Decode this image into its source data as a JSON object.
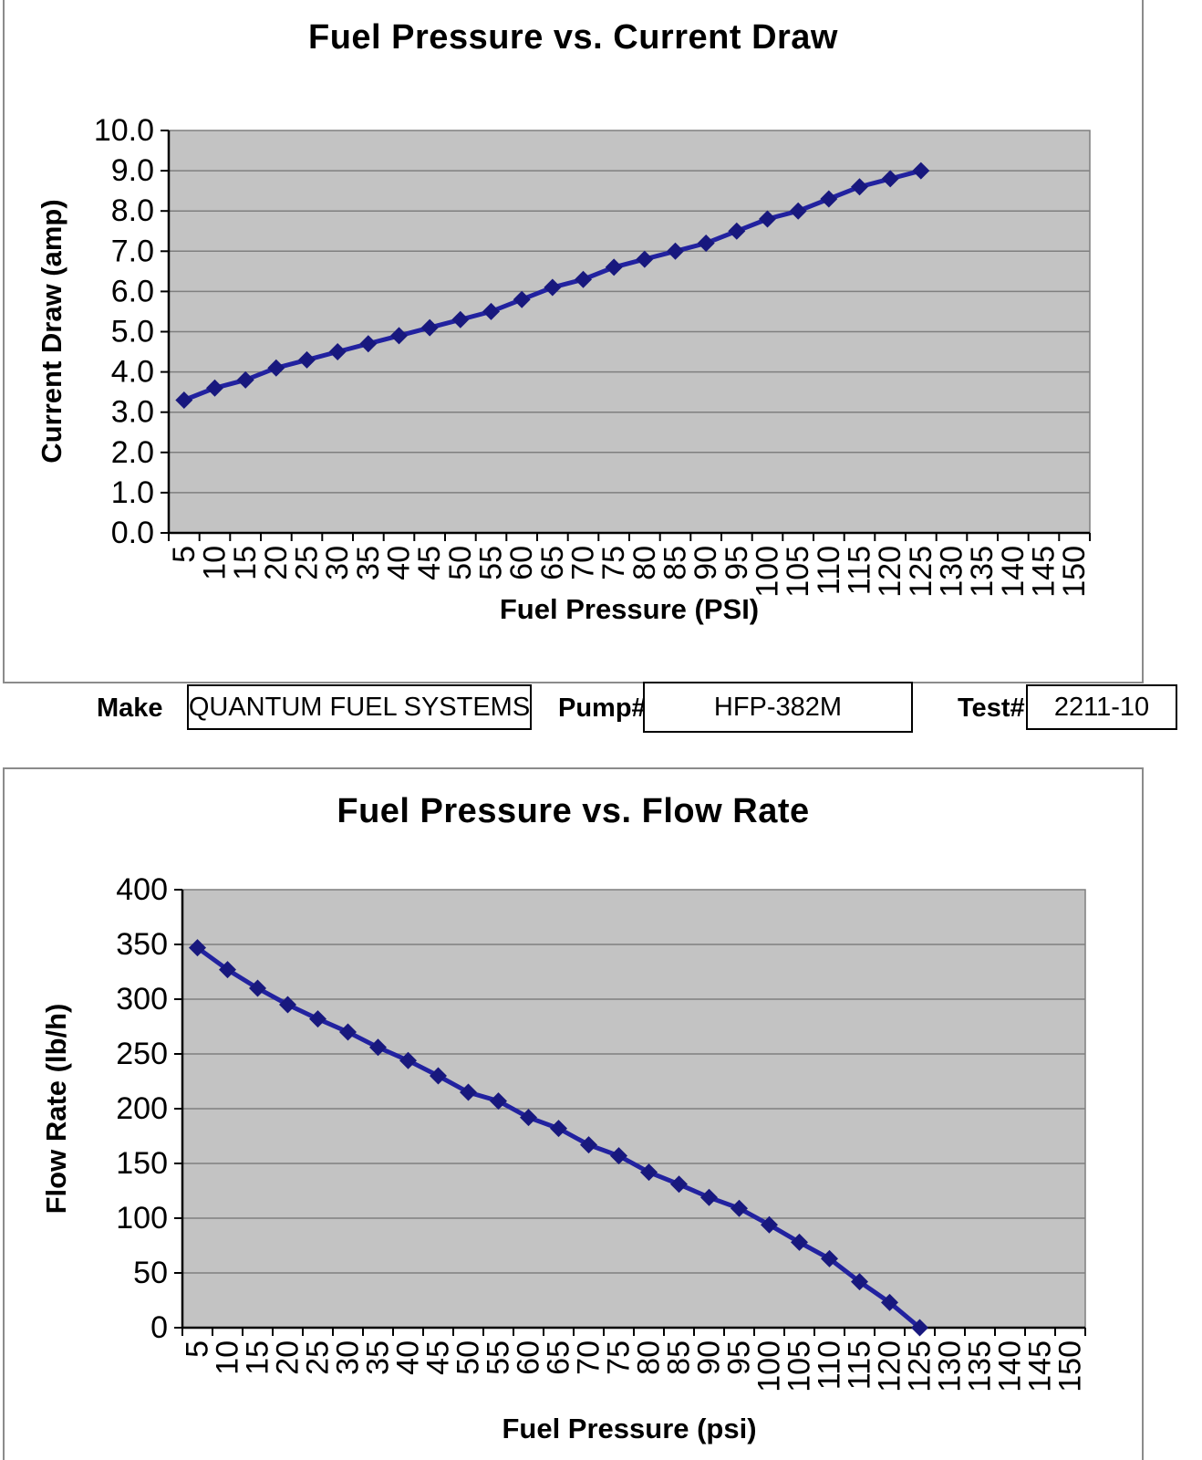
{
  "info_bar": {
    "make_label": "Make",
    "make_value": "QUANTUM FUEL SYSTEMS",
    "pump_label": "Pump#",
    "pump_value": "HFP-382M",
    "test_label": "Test#",
    "test_value": "2211-10"
  },
  "colors": {
    "plot_background": "#c3c3c3",
    "gridline": "#7f7f7f",
    "axis": "#000000",
    "series_line": "#2222a0",
    "series_marker": "#18187e",
    "frame_border": "#8b8b8b",
    "text": "#000000"
  },
  "chart_data": [
    {
      "type": "line",
      "title": "Fuel Pressure vs. Current Draw",
      "xlabel": "Fuel Pressure (PSI)",
      "ylabel": "Current Draw (amp)",
      "legend": "none",
      "grid": "horizontal",
      "marker": "diamond",
      "x": [
        5,
        10,
        15,
        20,
        25,
        30,
        35,
        40,
        45,
        50,
        55,
        60,
        65,
        70,
        75,
        80,
        85,
        90,
        95,
        100,
        105,
        110,
        115,
        120,
        125
      ],
      "values": [
        3.3,
        3.6,
        3.8,
        4.1,
        4.3,
        4.5,
        4.7,
        4.9,
        5.1,
        5.3,
        5.5,
        5.8,
        6.1,
        6.3,
        6.6,
        6.8,
        7.0,
        7.2,
        7.5,
        7.8,
        8.0,
        8.3,
        8.6,
        8.8,
        9.0
      ],
      "xticks": [
        5,
        10,
        15,
        20,
        25,
        30,
        35,
        40,
        45,
        50,
        55,
        60,
        65,
        70,
        75,
        80,
        85,
        90,
        95,
        100,
        105,
        110,
        115,
        120,
        125,
        130,
        135,
        140,
        145,
        150
      ],
      "yticks": [
        "0.0",
        "1.0",
        "2.0",
        "3.0",
        "4.0",
        "5.0",
        "6.0",
        "7.0",
        "8.0",
        "9.0",
        "10.0"
      ],
      "ylim": [
        0,
        10
      ]
    },
    {
      "type": "line",
      "title": "Fuel Pressure vs. Flow Rate",
      "xlabel": "Fuel Pressure (psi)",
      "ylabel": "Flow Rate (lb/h)",
      "legend": "none",
      "grid": "horizontal",
      "marker": "diamond",
      "x": [
        5,
        10,
        15,
        20,
        25,
        30,
        35,
        40,
        45,
        50,
        55,
        60,
        65,
        70,
        75,
        80,
        85,
        90,
        95,
        100,
        105,
        110,
        115,
        120,
        125
      ],
      "values": [
        347,
        327,
        310,
        295,
        282,
        270,
        256,
        244,
        230,
        215,
        207,
        192,
        182,
        167,
        157,
        142,
        131,
        119,
        109,
        94,
        78,
        63,
        42,
        23,
        0
      ],
      "xticks": [
        5,
        10,
        15,
        20,
        25,
        30,
        35,
        40,
        45,
        50,
        55,
        60,
        65,
        70,
        75,
        80,
        85,
        90,
        95,
        100,
        105,
        110,
        115,
        120,
        125,
        130,
        135,
        140,
        145,
        150
      ],
      "yticks": [
        "0",
        "50",
        "100",
        "150",
        "200",
        "250",
        "300",
        "350",
        "400"
      ],
      "ylim": [
        0,
        400
      ]
    }
  ]
}
